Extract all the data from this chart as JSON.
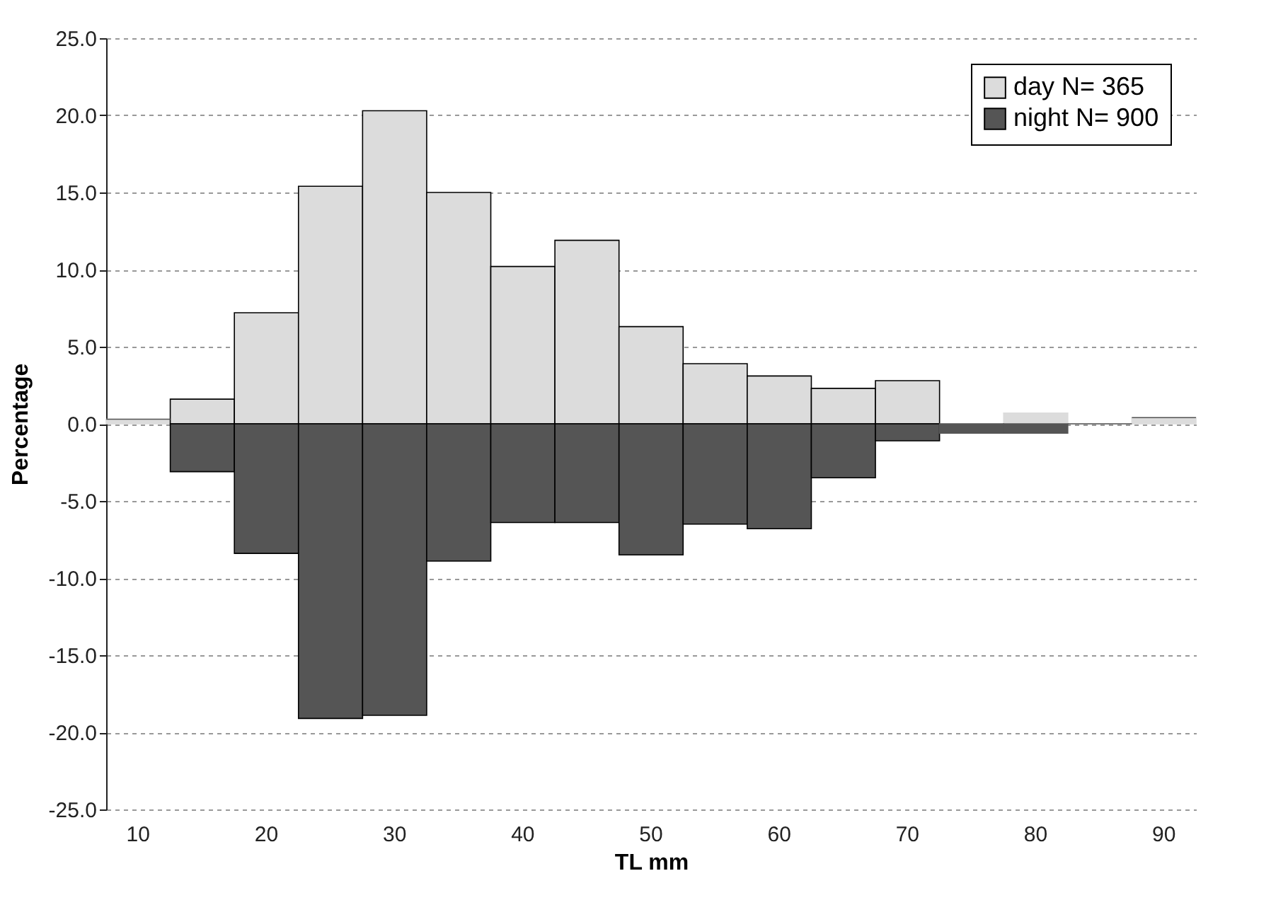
{
  "chart_data": {
    "type": "bar",
    "xlabel": "TL mm",
    "ylabel": "Percentage",
    "categories": [
      "10",
      null,
      "20",
      null,
      "30",
      null,
      "40",
      null,
      "50",
      null,
      "60",
      null,
      "70",
      null,
      "80",
      null,
      "90"
    ],
    "stacked": true,
    "series": [
      {
        "name": "day N= 365",
        "color": "#dcdcdc",
        "values": [
          0.3,
          1.6,
          7.2,
          15.4,
          20.3,
          15.0,
          10.2,
          11.9,
          6.3,
          3.9,
          3.1,
          2.3,
          2.8,
          0,
          0.7,
          0,
          0.4
        ]
      },
      {
        "name": "night N= 900",
        "color": "#555555",
        "values": [
          0,
          -3.1,
          -8.4,
          -19.1,
          -18.9,
          -8.9,
          -6.4,
          -6.4,
          -8.5,
          -6.5,
          -6.8,
          -3.5,
          -1.1,
          -0.6,
          -0.6,
          0,
          0
        ]
      }
    ],
    "ylim": [
      -25,
      25
    ],
    "yticks": [
      {
        "value": -25,
        "label": "-25.0"
      },
      {
        "value": -20,
        "label": "-20.0"
      },
      {
        "value": -15,
        "label": "-15.0"
      },
      {
        "value": -10,
        "label": "-10.0"
      },
      {
        "value": -5,
        "label": "-5.0"
      },
      {
        "value": 0,
        "label": "0.0"
      },
      {
        "value": 5,
        "label": "5.0"
      },
      {
        "value": 10,
        "label": "10.0"
      },
      {
        "value": 15,
        "label": "15.0"
      },
      {
        "value": 20,
        "label": "20.0"
      },
      {
        "value": 25,
        "label": "25.0"
      }
    ],
    "grid": "y",
    "legend": "top right"
  }
}
